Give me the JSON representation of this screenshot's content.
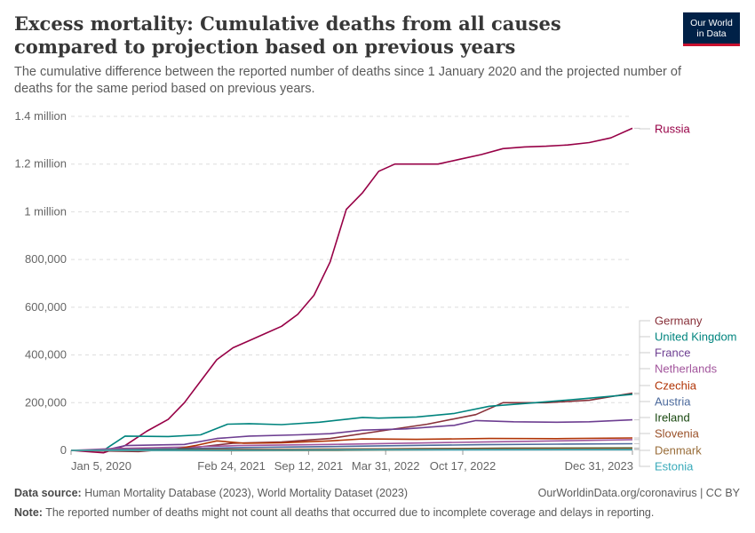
{
  "header": {
    "title": "Excess mortality: Cumulative deaths from all causes compared to projection based on previous years",
    "subtitle": "The cumulative difference between the reported number of deaths since 1 January 2020 and the projected number of deaths for the same period based on previous years.",
    "logo_line1": "Our World",
    "logo_line2": "in Data"
  },
  "footer": {
    "source_label": "Data source:",
    "source_text": " Human Mortality Database (2023), World Mortality Dataset (2023)",
    "url_text": "OurWorldinData.org/coronavirus | CC BY",
    "note_label": "Note:",
    "note_text": " The reported number of deaths might not count all deaths that occurred due to incomplete coverage and delays in reporting."
  },
  "colors": {
    "Russia": "#970046",
    "Germany": "#883039",
    "United Kingdom": "#00847e",
    "France": "#6d3e91",
    "Netherlands": "#a2559c",
    "Czechia": "#b13507",
    "Austria": "#4c6a9c",
    "Ireland": "#18470f",
    "Slovenia": "#9a5129",
    "Denmark": "#996d39",
    "Estonia": "#38aaba"
  },
  "chart_data": {
    "type": "line",
    "title": "Excess mortality: Cumulative deaths from all causes compared to projection based on previous years",
    "subtitle": "The cumulative difference between the reported number of deaths since 1 January 2020 and the projected number of deaths for the same period based on previous years.",
    "x_axis_type": "date",
    "x_ticks": [
      "2020-01-05",
      "2021-02-24",
      "2021-09-12",
      "2022-03-31",
      "2022-10-17",
      "2023-12-31"
    ],
    "x_tick_labels": [
      "Jan 5, 2020",
      "Feb 24, 2021",
      "Sep 12, 2021",
      "Mar 31, 2022",
      "Oct 17, 2022",
      "Dec 31, 2023"
    ],
    "xlim": [
      "2020-01-05",
      "2023-12-31"
    ],
    "ylim": [
      0,
      1400000
    ],
    "y_ticks": [
      0,
      200000,
      400000,
      600000,
      800000,
      1000000,
      1200000,
      1400000
    ],
    "y_tick_labels": [
      "0",
      "200,000",
      "400,000",
      "600,000",
      "800,000",
      "1 million",
      "1.2 million",
      "1.4 million"
    ],
    "grid": "horizontal dashed",
    "legend": "right, labels at line ends",
    "series": [
      {
        "name": "Russia",
        "x": [
          "2020-01-05",
          "2020-03-29",
          "2020-05-24",
          "2020-07-19",
          "2020-09-13",
          "2020-10-25",
          "2020-12-06",
          "2021-01-17",
          "2021-02-28",
          "2021-04-11",
          "2021-05-23",
          "2021-07-04",
          "2021-08-15",
          "2021-09-26",
          "2021-11-07",
          "2021-12-19",
          "2022-01-30",
          "2022-03-13",
          "2022-04-24",
          "2022-06-19",
          "2022-08-14",
          "2022-10-09",
          "2022-12-04",
          "2023-01-29",
          "2023-03-26",
          "2023-05-21",
          "2023-07-16",
          "2023-09-10",
          "2023-11-05",
          "2023-12-31"
        ],
        "y": [
          0,
          -10000,
          20000,
          80000,
          130000,
          200000,
          290000,
          380000,
          430000,
          460000,
          490000,
          520000,
          570000,
          650000,
          790000,
          1010000,
          1080000,
          1170000,
          1200000,
          1200000,
          1200000,
          1220000,
          1240000,
          1265000,
          1272000,
          1275000,
          1280000,
          1290000,
          1310000,
          1350000
        ]
      },
      {
        "name": "Germany",
        "x": [
          "2020-01-05",
          "2020-06-28",
          "2020-12-06",
          "2021-02-28",
          "2021-07-04",
          "2021-11-07",
          "2022-03-13",
          "2022-07-17",
          "2022-11-20",
          "2023-01-29",
          "2023-05-21",
          "2023-09-10",
          "2023-12-31"
        ],
        "y": [
          0,
          -5000,
          15000,
          30000,
          35000,
          50000,
          80000,
          110000,
          150000,
          200000,
          200000,
          210000,
          240000
        ]
      },
      {
        "name": "United Kingdom",
        "x": [
          "2020-01-05",
          "2020-03-29",
          "2020-05-24",
          "2020-09-13",
          "2020-12-06",
          "2021-02-14",
          "2021-04-11",
          "2021-07-04",
          "2021-10-10",
          "2022-01-30",
          "2022-03-13",
          "2022-06-19",
          "2022-09-25",
          "2022-12-25",
          "2023-04-23",
          "2023-08-13",
          "2023-12-31"
        ],
        "y": [
          0,
          0,
          60000,
          58000,
          65000,
          110000,
          112000,
          108000,
          118000,
          138000,
          135000,
          140000,
          155000,
          185000,
          200000,
          215000,
          235000
        ]
      },
      {
        "name": "France",
        "x": [
          "2020-01-05",
          "2020-03-29",
          "2020-05-24",
          "2020-10-25",
          "2021-01-17",
          "2021-04-11",
          "2021-08-15",
          "2021-11-07",
          "2022-01-30",
          "2022-05-22",
          "2022-09-25",
          "2022-11-20",
          "2023-02-26",
          "2023-06-18",
          "2023-09-10",
          "2023-12-31"
        ],
        "y": [
          0,
          0,
          20000,
          25000,
          50000,
          60000,
          65000,
          70000,
          85000,
          90000,
          105000,
          125000,
          120000,
          118000,
          120000,
          128000
        ]
      },
      {
        "name": "Netherlands",
        "x": [
          "2020-01-05",
          "2020-04-26",
          "2020-11-22",
          "2021-03-14",
          "2021-11-07",
          "2022-05-22",
          "2022-12-04",
          "2023-06-18",
          "2023-12-31"
        ],
        "y": [
          0,
          8000,
          15000,
          20000,
          25000,
          30000,
          35000,
          40000,
          45000
        ]
      },
      {
        "name": "Czechia",
        "x": [
          "2020-01-05",
          "2020-09-13",
          "2020-11-22",
          "2021-01-17",
          "2021-03-28",
          "2021-07-04",
          "2021-11-07",
          "2022-01-30",
          "2022-06-19",
          "2022-12-25",
          "2023-06-18",
          "2023-12-31"
        ],
        "y": [
          0,
          0,
          20000,
          40000,
          30000,
          32000,
          40000,
          48000,
          46000,
          50000,
          49000,
          52000
        ]
      },
      {
        "name": "Austria",
        "x": [
          "2020-01-05",
          "2020-11-22",
          "2021-03-28",
          "2021-11-07",
          "2022-05-22",
          "2022-12-04",
          "2023-06-18",
          "2023-12-31"
        ],
        "y": [
          0,
          8000,
          12000,
          16000,
          20000,
          24000,
          26000,
          28000
        ]
      },
      {
        "name": "Ireland",
        "x": [
          "2020-01-05",
          "2020-06-28",
          "2021-02-28",
          "2021-11-07",
          "2022-06-19",
          "2023-01-29",
          "2023-12-31"
        ],
        "y": [
          0,
          2000,
          4000,
          5000,
          7000,
          9000,
          10000
        ]
      },
      {
        "name": "Slovenia",
        "x": [
          "2020-01-05",
          "2020-10-25",
          "2021-01-17",
          "2021-09-12",
          "2022-03-31",
          "2022-10-17",
          "2023-12-31"
        ],
        "y": [
          0,
          1000,
          4000,
          5000,
          6000,
          7000,
          8000
        ]
      },
      {
        "name": "Denmark",
        "x": [
          "2020-01-05",
          "2021-02-24",
          "2021-12-19",
          "2022-06-19",
          "2022-12-25",
          "2023-12-31"
        ],
        "y": [
          0,
          -1000,
          0,
          2000,
          4000,
          6000
        ]
      },
      {
        "name": "Estonia",
        "x": [
          "2020-01-05",
          "2020-12-06",
          "2021-09-12",
          "2022-03-31",
          "2023-12-31"
        ],
        "y": [
          0,
          500,
          1500,
          2500,
          3000
        ]
      }
    ]
  }
}
